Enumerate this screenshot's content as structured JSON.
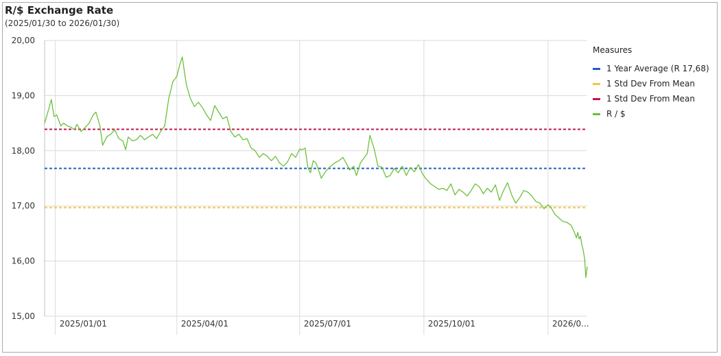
{
  "header": {
    "title": "R/$ Exchange Rate",
    "subtitle": "(2025/01/30 to 2026/01/30)"
  },
  "legend": {
    "title": "Measures",
    "items": [
      {
        "label": "1 Year Average (R 17,68)",
        "color": "#1f5fbf"
      },
      {
        "label": "1 Std Dev From Mean",
        "color": "#f5c542"
      },
      {
        "label": "1 Std Dev From Mean",
        "color": "#c0154a"
      },
      {
        "label": "R / $",
        "color": "#6cbf3a"
      }
    ]
  },
  "chart_data": {
    "type": "line",
    "title": "R/$ Exchange Rate",
    "subtitle": "(2025/01/30 to 2026/01/30)",
    "xlabel": "",
    "ylabel": "",
    "ylim": [
      15.0,
      20.0
    ],
    "yticks": [
      15,
      16,
      17,
      18,
      19,
      20
    ],
    "ytick_labels": [
      "15,00",
      "16,00",
      "17,00",
      "18,00",
      "19,00",
      "20,00"
    ],
    "xlim": [
      "2024-12-24",
      "2026-01-30"
    ],
    "xticks": [
      "2025-01-01",
      "2025-04-01",
      "2025-07-01",
      "2025-10-01",
      "2026-01-01"
    ],
    "xtick_labels": [
      "2025/01/01",
      "2025/04/01",
      "2025/07/01",
      "2025/10/01",
      "2026/0..."
    ],
    "grid": true,
    "legend_position": "right",
    "reference_lines": [
      {
        "name": "1 Year Average (R 17,68)",
        "value": 17.68,
        "color": "#1f5fbf",
        "style": "dashed"
      },
      {
        "name": "1 Std Dev From Mean",
        "value": 16.97,
        "color": "#f5c542",
        "style": "dashed"
      },
      {
        "name": "1 Std Dev From Mean",
        "value": 18.39,
        "color": "#c0154a",
        "style": "dashed"
      }
    ],
    "series": [
      {
        "name": "R / $",
        "color": "#6cbf3a",
        "points": [
          [
            "2024-12-24",
            18.5
          ],
          [
            "2024-12-27",
            18.75
          ],
          [
            "2024-12-29",
            18.93
          ],
          [
            "2024-12-31",
            18.62
          ],
          [
            "2025-01-02",
            18.65
          ],
          [
            "2025-01-05",
            18.45
          ],
          [
            "2025-01-07",
            18.5
          ],
          [
            "2025-01-10",
            18.45
          ],
          [
            "2025-01-13",
            18.42
          ],
          [
            "2025-01-15",
            18.38
          ],
          [
            "2025-01-17",
            18.48
          ],
          [
            "2025-01-20",
            18.35
          ],
          [
            "2025-01-23",
            18.42
          ],
          [
            "2025-01-26",
            18.5
          ],
          [
            "2025-01-29",
            18.65
          ],
          [
            "2025-01-31",
            18.7
          ],
          [
            "2025-02-03",
            18.45
          ],
          [
            "2025-02-05",
            18.1
          ],
          [
            "2025-02-08",
            18.25
          ],
          [
            "2025-02-11",
            18.3
          ],
          [
            "2025-02-14",
            18.38
          ],
          [
            "2025-02-17",
            18.22
          ],
          [
            "2025-02-20",
            18.18
          ],
          [
            "2025-02-22",
            18.02
          ],
          [
            "2025-02-24",
            18.25
          ],
          [
            "2025-02-27",
            18.18
          ],
          [
            "2025-03-02",
            18.2
          ],
          [
            "2025-03-05",
            18.28
          ],
          [
            "2025-03-08",
            18.2
          ],
          [
            "2025-03-11",
            18.25
          ],
          [
            "2025-03-14",
            18.3
          ],
          [
            "2025-03-17",
            18.22
          ],
          [
            "2025-03-20",
            18.35
          ],
          [
            "2025-03-23",
            18.45
          ],
          [
            "2025-03-26",
            18.95
          ],
          [
            "2025-03-29",
            19.25
          ],
          [
            "2025-04-01",
            19.35
          ],
          [
            "2025-04-03",
            19.55
          ],
          [
            "2025-04-05",
            19.7
          ],
          [
            "2025-04-08",
            19.2
          ],
          [
            "2025-04-11",
            18.95
          ],
          [
            "2025-04-14",
            18.8
          ],
          [
            "2025-04-17",
            18.88
          ],
          [
            "2025-04-20",
            18.78
          ],
          [
            "2025-04-23",
            18.65
          ],
          [
            "2025-04-26",
            18.55
          ],
          [
            "2025-04-29",
            18.82
          ],
          [
            "2025-05-02",
            18.7
          ],
          [
            "2025-05-05",
            18.58
          ],
          [
            "2025-05-08",
            18.62
          ],
          [
            "2025-05-11",
            18.35
          ],
          [
            "2025-05-14",
            18.25
          ],
          [
            "2025-05-17",
            18.3
          ],
          [
            "2025-05-20",
            18.2
          ],
          [
            "2025-05-23",
            18.22
          ],
          [
            "2025-05-26",
            18.05
          ],
          [
            "2025-05-29",
            18.0
          ],
          [
            "2025-06-01",
            17.88
          ],
          [
            "2025-06-04",
            17.95
          ],
          [
            "2025-06-07",
            17.9
          ],
          [
            "2025-06-10",
            17.82
          ],
          [
            "2025-06-13",
            17.9
          ],
          [
            "2025-06-16",
            17.78
          ],
          [
            "2025-06-19",
            17.72
          ],
          [
            "2025-06-22",
            17.8
          ],
          [
            "2025-06-25",
            17.95
          ],
          [
            "2025-06-28",
            17.88
          ],
          [
            "2025-07-01",
            18.03
          ],
          [
            "2025-07-03",
            18.02
          ],
          [
            "2025-07-05",
            18.05
          ],
          [
            "2025-07-07",
            17.7
          ],
          [
            "2025-07-09",
            17.6
          ],
          [
            "2025-07-11",
            17.82
          ],
          [
            "2025-07-13",
            17.78
          ],
          [
            "2025-07-15",
            17.65
          ],
          [
            "2025-07-17",
            17.5
          ],
          [
            "2025-07-19",
            17.58
          ],
          [
            "2025-07-21",
            17.65
          ],
          [
            "2025-07-24",
            17.72
          ],
          [
            "2025-07-27",
            17.78
          ],
          [
            "2025-07-30",
            17.82
          ],
          [
            "2025-08-02",
            17.88
          ],
          [
            "2025-08-05",
            17.75
          ],
          [
            "2025-08-07",
            17.65
          ],
          [
            "2025-08-10",
            17.72
          ],
          [
            "2025-08-12",
            17.55
          ],
          [
            "2025-08-15",
            17.78
          ],
          [
            "2025-08-18",
            17.88
          ],
          [
            "2025-08-20",
            17.95
          ],
          [
            "2025-08-22",
            18.28
          ],
          [
            "2025-08-25",
            18.05
          ],
          [
            "2025-08-28",
            17.72
          ],
          [
            "2025-08-31",
            17.7
          ],
          [
            "2025-09-03",
            17.52
          ],
          [
            "2025-09-06",
            17.55
          ],
          [
            "2025-09-09",
            17.68
          ],
          [
            "2025-09-12",
            17.6
          ],
          [
            "2025-09-15",
            17.72
          ],
          [
            "2025-09-18",
            17.55
          ],
          [
            "2025-09-21",
            17.7
          ],
          [
            "2025-09-24",
            17.62
          ],
          [
            "2025-09-27",
            17.75
          ],
          [
            "2025-09-30",
            17.58
          ],
          [
            "2025-10-03",
            17.48
          ],
          [
            "2025-10-06",
            17.4
          ],
          [
            "2025-10-09",
            17.35
          ],
          [
            "2025-10-12",
            17.3
          ],
          [
            "2025-10-15",
            17.32
          ],
          [
            "2025-10-18",
            17.28
          ],
          [
            "2025-10-21",
            17.4
          ],
          [
            "2025-10-24",
            17.2
          ],
          [
            "2025-10-27",
            17.3
          ],
          [
            "2025-10-30",
            17.25
          ],
          [
            "2025-11-02",
            17.18
          ],
          [
            "2025-11-05",
            17.28
          ],
          [
            "2025-11-08",
            17.4
          ],
          [
            "2025-11-11",
            17.35
          ],
          [
            "2025-11-14",
            17.22
          ],
          [
            "2025-11-17",
            17.32
          ],
          [
            "2025-11-20",
            17.25
          ],
          [
            "2025-11-23",
            17.38
          ],
          [
            "2025-11-26",
            17.1
          ],
          [
            "2025-11-29",
            17.28
          ],
          [
            "2025-12-02",
            17.42
          ],
          [
            "2025-12-05",
            17.2
          ],
          [
            "2025-12-08",
            17.05
          ],
          [
            "2025-12-11",
            17.15
          ],
          [
            "2025-12-14",
            17.28
          ],
          [
            "2025-12-17",
            17.25
          ],
          [
            "2025-12-20",
            17.18
          ],
          [
            "2025-12-23",
            17.08
          ],
          [
            "2025-12-26",
            17.05
          ],
          [
            "2025-12-29",
            16.95
          ],
          [
            "2026-01-01",
            17.02
          ],
          [
            "2026-01-03",
            16.98
          ],
          [
            "2026-01-06",
            16.85
          ],
          [
            "2026-01-09",
            16.78
          ],
          [
            "2026-01-12",
            16.72
          ],
          [
            "2026-01-15",
            16.7
          ],
          [
            "2026-01-18",
            16.65
          ],
          [
            "2026-01-20",
            16.55
          ],
          [
            "2026-01-22",
            16.42
          ],
          [
            "2026-01-23",
            16.52
          ],
          [
            "2026-01-24",
            16.4
          ],
          [
            "2026-01-25",
            16.45
          ],
          [
            "2026-01-26",
            16.3
          ],
          [
            "2026-01-27",
            16.2
          ],
          [
            "2026-01-28",
            16.05
          ],
          [
            "2026-01-29",
            15.7
          ],
          [
            "2026-01-30",
            15.9
          ]
        ]
      }
    ]
  }
}
